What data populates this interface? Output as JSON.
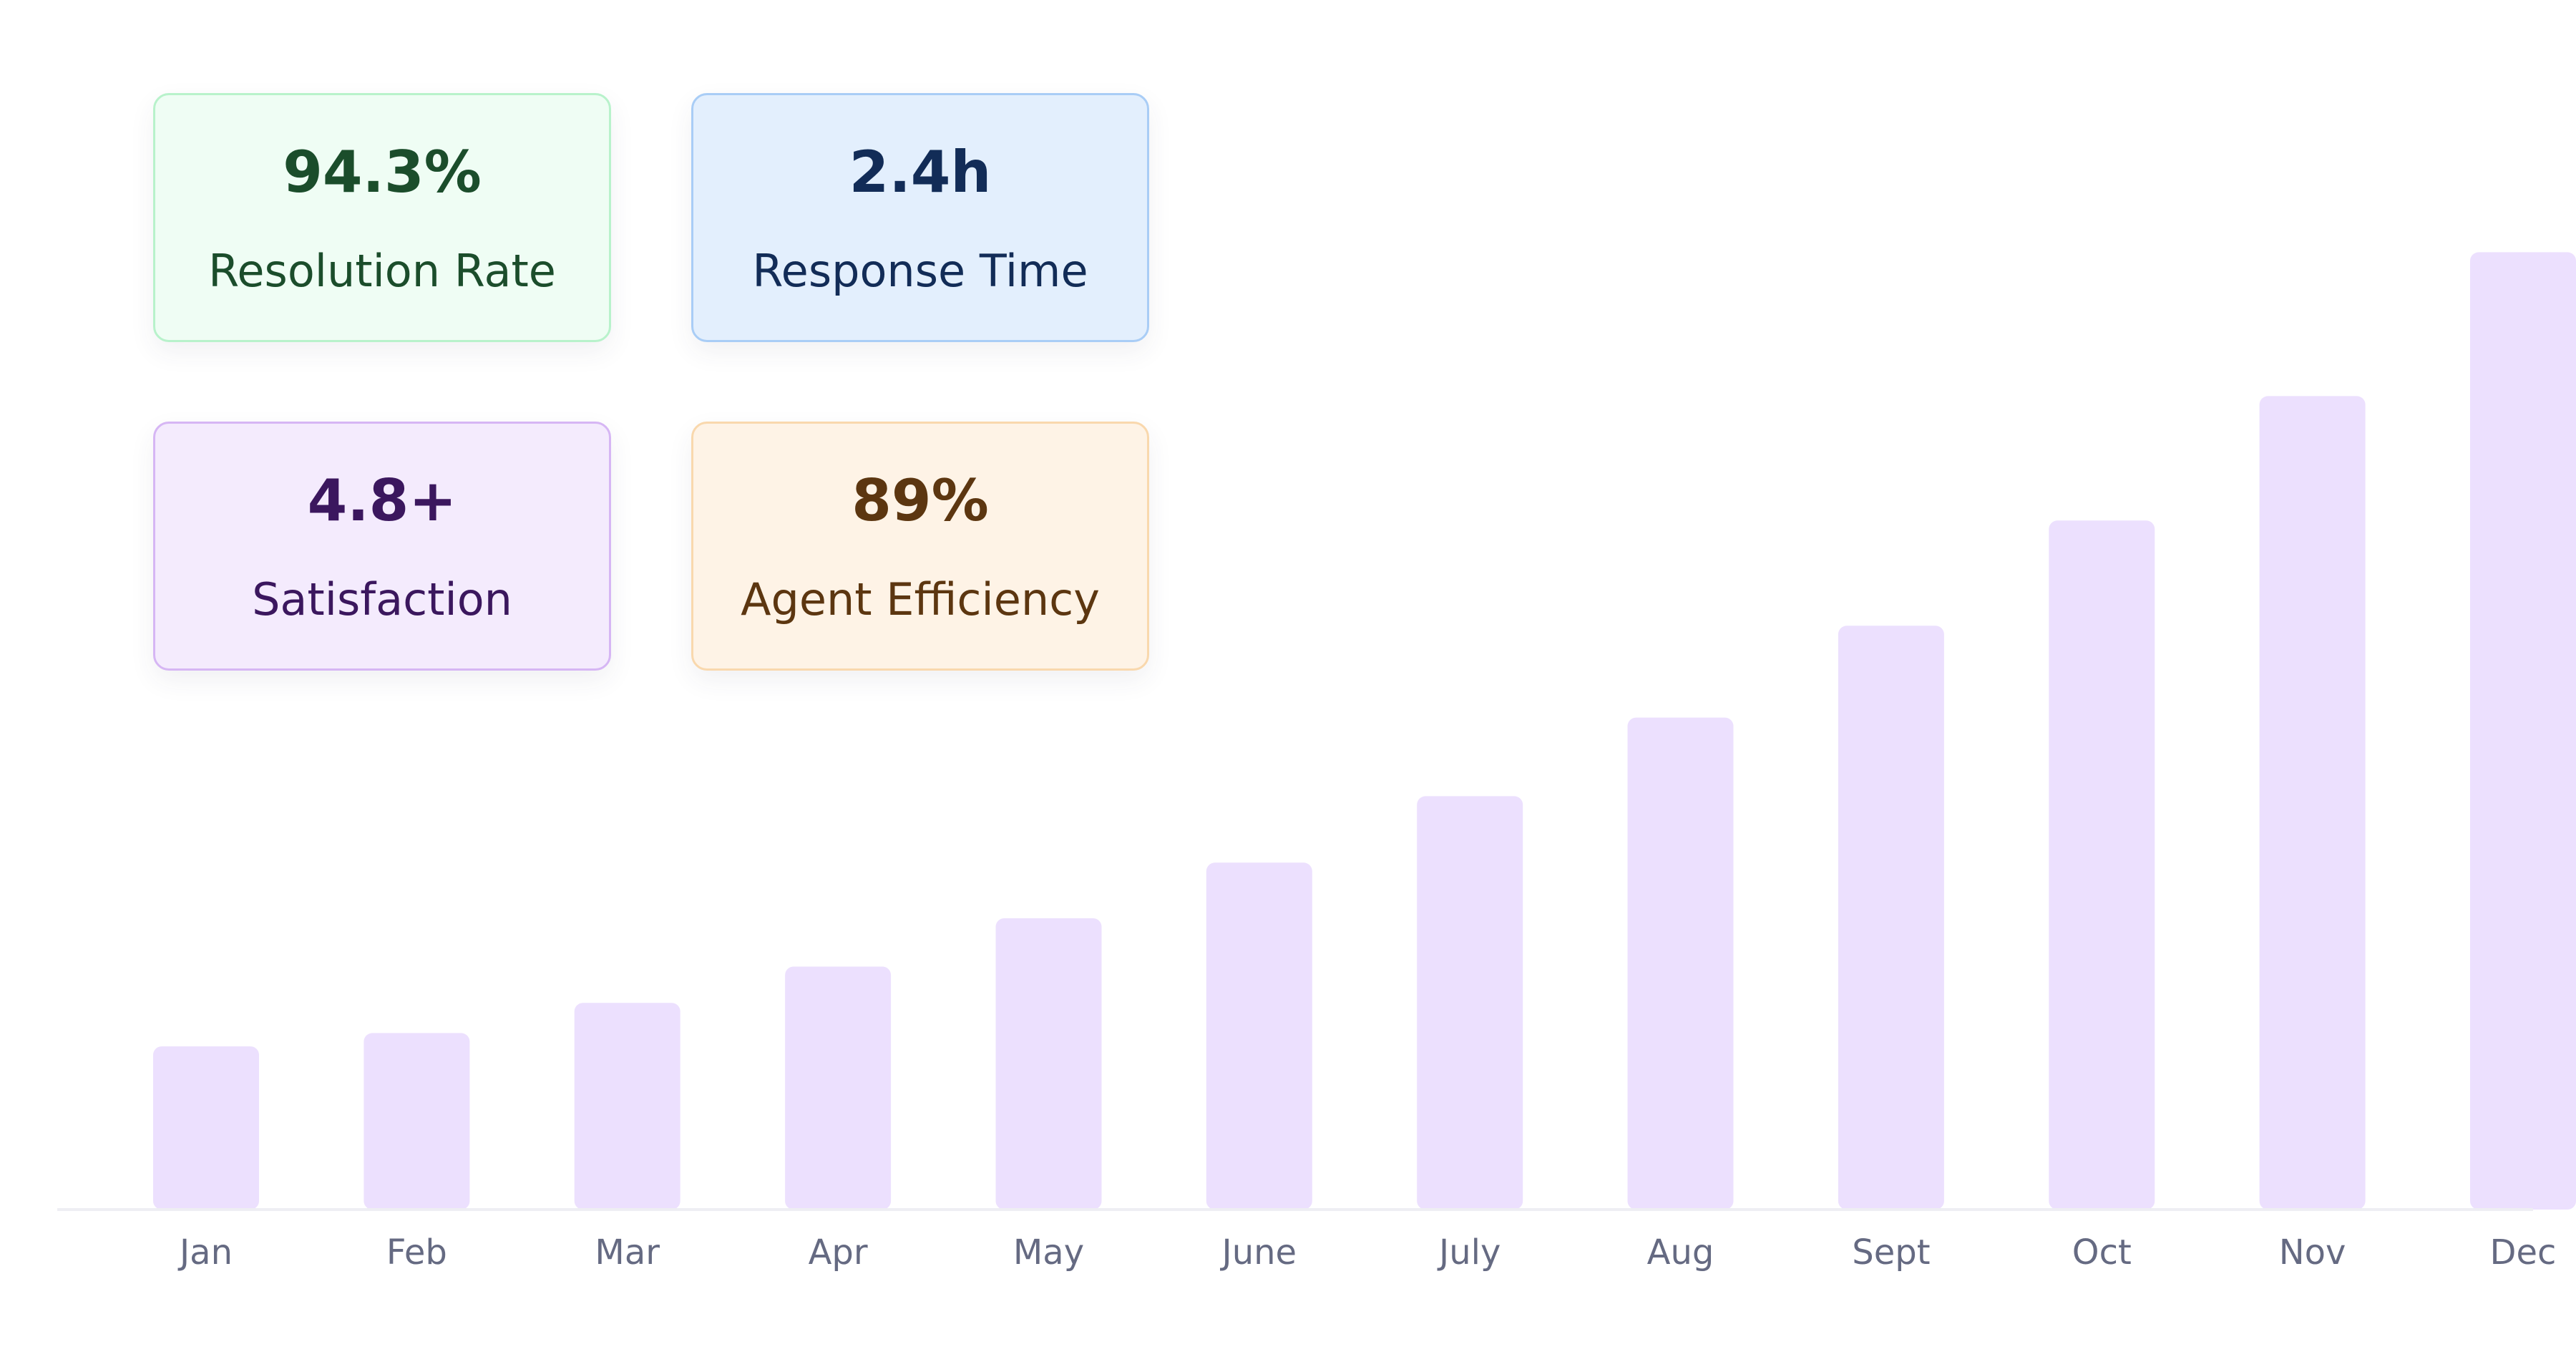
{
  "kpis": [
    {
      "value": "94.3%",
      "label": "Resolution Rate",
      "bg": "#effdf4",
      "border": "#b8f2cb",
      "color": "#1b4d2b"
    },
    {
      "value": "2.4h",
      "label": "Response Time",
      "bg": "#e3effd",
      "border": "#a9cdf6",
      "color": "#122c57"
    },
    {
      "value": "4.8+",
      "label": "Satisfaction",
      "bg": "#f4ebfd",
      "border": "#d6b6f4",
      "color": "#3b175e"
    },
    {
      "value": "89%",
      "label": "Agent Efficiency",
      "bg": "#fef3e6",
      "border": "#f9d8ad",
      "color": "#5c3610"
    }
  ],
  "chart_data": {
    "type": "bar",
    "categories": [
      "Jan",
      "Feb",
      "Mar",
      "Apr",
      "May",
      "June",
      "July",
      "Aug",
      "Sept",
      "Oct",
      "Nov",
      "Dec"
    ],
    "values": [
      13.5,
      14.6,
      17.1,
      20.1,
      24.1,
      28.7,
      34.2,
      40.7,
      48.3,
      57.0,
      67.3,
      79.2
    ],
    "ylim": [
      0,
      90
    ],
    "grid": false,
    "bar_color": "#ece0fe",
    "axis_color": "#eeeef3",
    "label_color": "#656a82"
  }
}
